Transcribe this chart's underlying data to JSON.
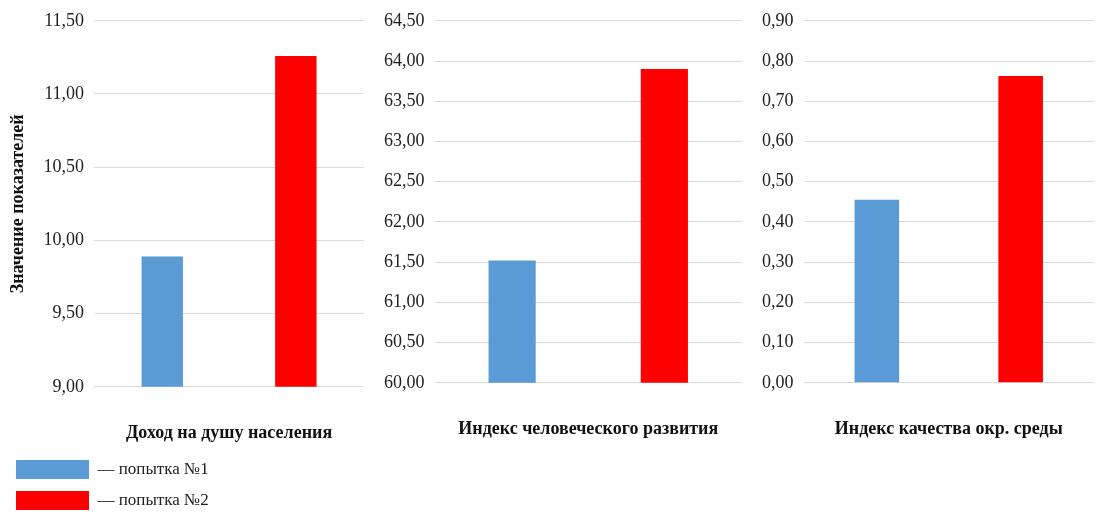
{
  "chart_data": [
    {
      "type": "bar",
      "ylabel": "Значение показателей",
      "xlabel": "Доход на душу населения",
      "categories": [
        null
      ],
      "series": [
        {
          "name": "— попытка №1",
          "color": "#5b9bd5",
          "values": [
            9.89
          ]
        },
        {
          "name": "— попытка №2",
          "color": "#ff0000",
          "values": [
            11.26
          ]
        }
      ],
      "ylim": [
        9,
        11.5
      ],
      "yticks": [
        {
          "value": 9,
          "label": "9,00"
        },
        {
          "value": 9.5,
          "label": "9,50"
        },
        {
          "value": 10,
          "label": "10,00"
        },
        {
          "value": 10.5,
          "label": "10,50"
        },
        {
          "value": 11,
          "label": "11,00"
        },
        {
          "value": 11.5,
          "label": "11,50"
        }
      ],
      "grid": "y",
      "legend": "bottom left"
    },
    {
      "type": "bar",
      "xlabel": "Индекс человеческого развития",
      "categories": [
        null
      ],
      "series": [
        {
          "color": "#5b9bd5",
          "values": [
            61.52
          ]
        },
        {
          "color": "#ff0000",
          "values": [
            63.9
          ]
        }
      ],
      "ylim": [
        60,
        64.5
      ],
      "yticks": [
        {
          "value": 60,
          "label": "60,00"
        },
        {
          "value": 60.5,
          "label": "60,50"
        },
        {
          "value": 61,
          "label": "61,00"
        },
        {
          "value": 61.5,
          "label": "61,50"
        },
        {
          "value": 62,
          "label": "62,00"
        },
        {
          "value": 62.5,
          "label": "62,50"
        },
        {
          "value": 63,
          "label": "63,00"
        },
        {
          "value": 63.5,
          "label": "63,50"
        },
        {
          "value": 64,
          "label": "64,00"
        },
        {
          "value": 64.5,
          "label": "64,50"
        }
      ],
      "grid": "y"
    },
    {
      "type": "bar",
      "xlabel": "Индекс качества окр. среды",
      "categories": [
        null
      ],
      "series": [
        {
          "color": "#5b9bd5",
          "values": [
            0.455
          ]
        },
        {
          "color": "#ff0000",
          "values": [
            0.763
          ]
        }
      ],
      "ylim": [
        0,
        0.9
      ],
      "yticks": [
        {
          "value": 0,
          "label": "0,00"
        },
        {
          "value": 0.1,
          "label": "0,10"
        },
        {
          "value": 0.2,
          "label": "0,20"
        },
        {
          "value": 0.3,
          "label": "0,30"
        },
        {
          "value": 0.4,
          "label": "0,40"
        },
        {
          "value": 0.5,
          "label": "0,50"
        },
        {
          "value": 0.6,
          "label": "0,60"
        },
        {
          "value": 0.7,
          "label": "0,70"
        },
        {
          "value": 0.8,
          "label": "0,80"
        },
        {
          "value": 0.9,
          "label": "0,90"
        }
      ],
      "grid": "y"
    }
  ]
}
